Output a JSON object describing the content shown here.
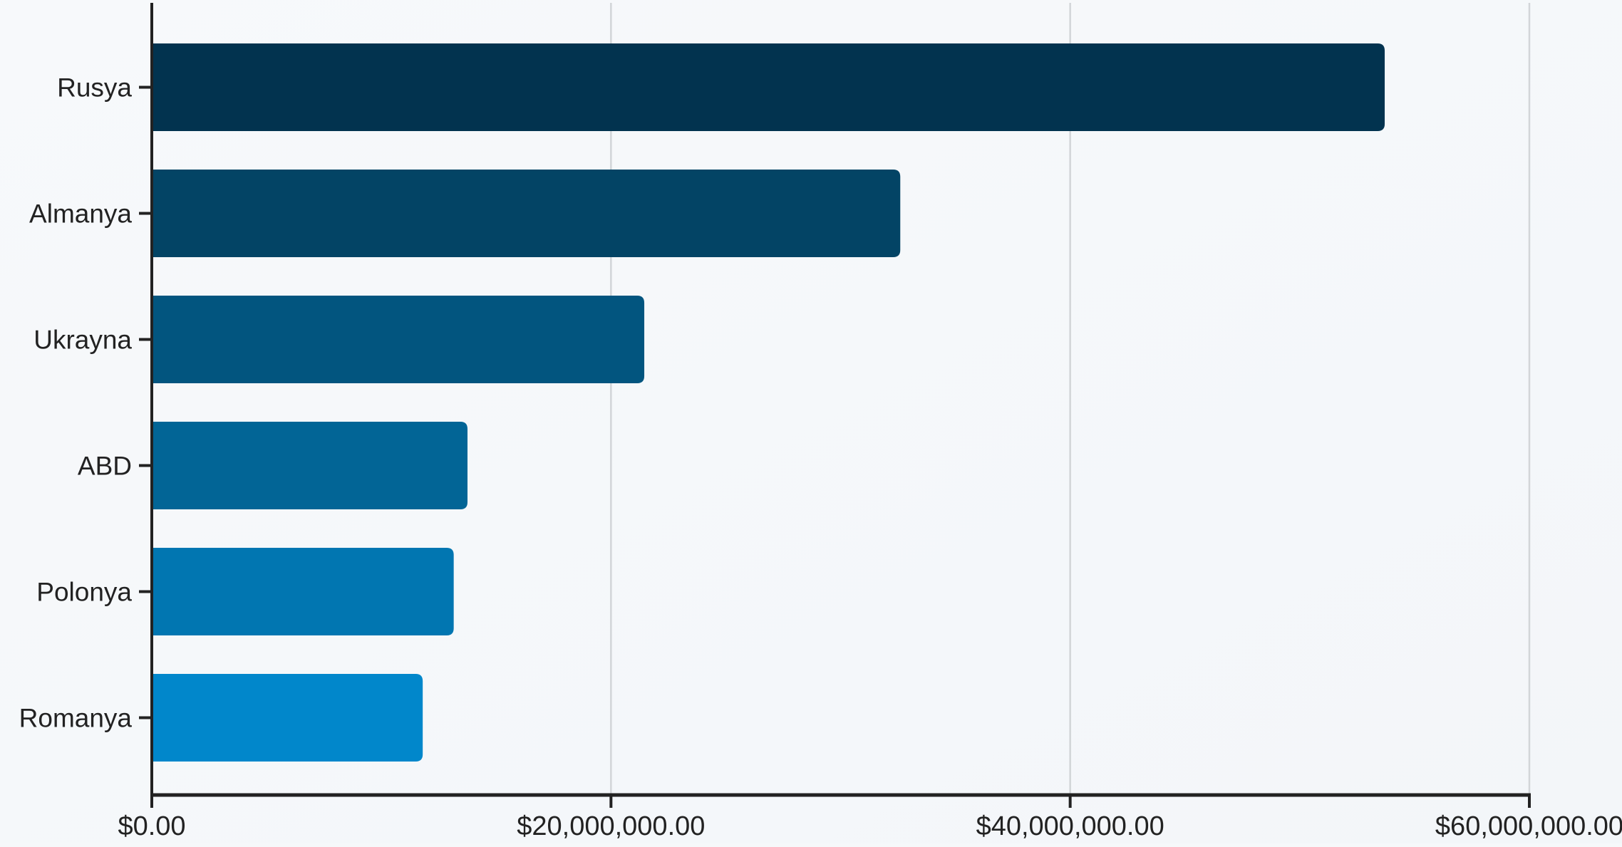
{
  "chart_data": {
    "type": "bar",
    "orientation": "horizontal",
    "categories": [
      "Rusya",
      "Almanya",
      "Ukrayna",
      "ABD",
      "Polonya",
      "Romanya"
    ],
    "values": [
      53700000,
      32600000,
      21450000,
      13750000,
      13150000,
      11800000
    ],
    "x_ticks": [
      "$0.00",
      "$20,000,000.00",
      "$40,000,000.00",
      "$60,000,000.00"
    ],
    "x_tick_values": [
      0,
      20000000,
      40000000,
      60000000
    ],
    "xlim": [
      0,
      60000000
    ],
    "title": "",
    "xlabel": "",
    "ylabel": "",
    "grid": "vertical",
    "legend": "none",
    "colors": [
      "#02334f",
      "#034465",
      "#02557f",
      "#026596",
      "#0176b1",
      "#0187cb"
    ]
  }
}
